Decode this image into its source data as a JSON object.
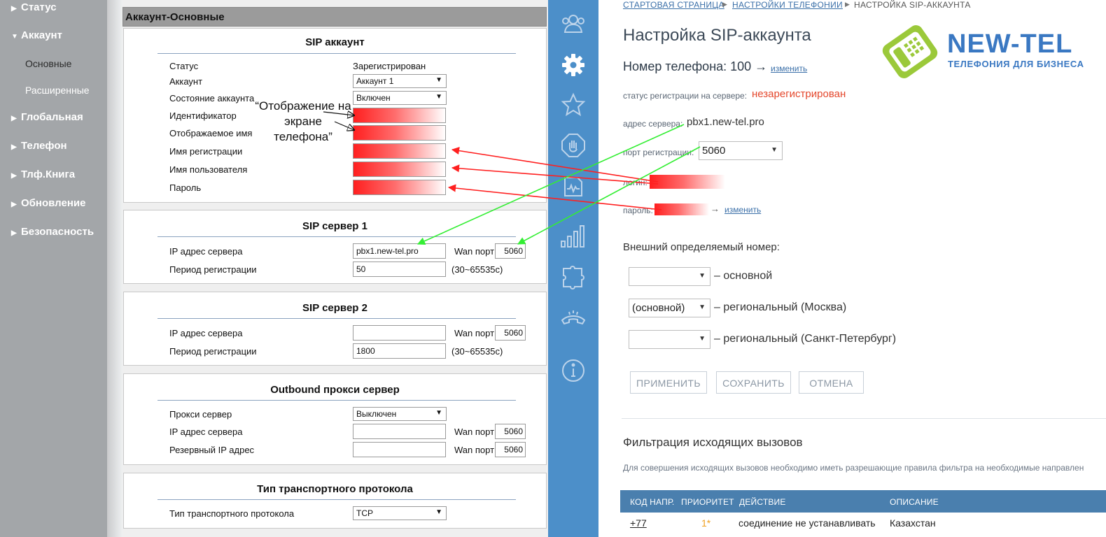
{
  "left_menu": {
    "items": [
      {
        "label": "Статус"
      },
      {
        "label": "Аккаунт"
      },
      {
        "label": "Глобальная"
      },
      {
        "label": "Телефон"
      },
      {
        "label": "Тлф.Книга"
      },
      {
        "label": "Обновление"
      },
      {
        "label": "Безопасность"
      }
    ],
    "sub_items": [
      {
        "label": "Основные"
      },
      {
        "label": "Расширенные"
      }
    ]
  },
  "phone_panel": {
    "header": "Аккаунт-Основные",
    "sip_account": {
      "title": "SIP аккаунт",
      "status_label": "Статус",
      "status_value": "Зарегистрирован",
      "account_label": "Аккаунт",
      "account_value": "Аккаунт 1",
      "account_state_label": "Состояние аккаунта",
      "account_state_value": "Включен",
      "identifier_label": "Идентификатор",
      "display_name_label": "Отображаемое имя",
      "registration_name_label": "Имя регистрации",
      "username_label": "Имя пользователя",
      "password_label": "Пароль"
    },
    "annotation": "“Отображение на экране телефона”",
    "sip_server1": {
      "title": "SIP сервер 1",
      "ip_label": "IP адрес сервера",
      "ip_value": "pbx1.new-tel.pro",
      "wan_label": "Wan порт",
      "wan_value": "5060",
      "period_label": "Период регистрации",
      "period_value": "50",
      "period_hint": "(30~65535c)"
    },
    "sip_server2": {
      "title": "SIP сервер 2",
      "ip_label": "IP адрес сервера",
      "ip_value": "",
      "wan_label": "Wan порт",
      "wan_value": "5060",
      "period_label": "Период регистрации",
      "period_value": "1800",
      "period_hint": "(30~65535c)"
    },
    "outbound_proxy": {
      "title": "Outbound прокси сервер",
      "proxy_label": "Прокси сервер",
      "proxy_value": "Выключен",
      "ip_label": "IP адрес сервера",
      "wan_label": "Wan порт",
      "wan_value": "5060",
      "backup_ip_label": "Резервный IP адрес",
      "backup_wan_label": "Wan порт",
      "backup_wan_value": "5060"
    },
    "transport": {
      "title": "Тип транспортного протокола",
      "type_label": "Тип транспортного протокола",
      "type_value": "TCP"
    }
  },
  "icon_strip": {
    "icons": [
      "users-icon",
      "gear-icon",
      "star-icon",
      "hand-stop-icon",
      "voicemail-icon",
      "bar-chart-icon",
      "puzzle-icon",
      "phone-icon",
      "info-icon"
    ]
  },
  "right_panel": {
    "breadcrumb": [
      "СТАРТОВАЯ СТРАНИЦА",
      "НАСТРОЙКИ ТЕЛЕФОНИИ",
      "НАСТРОЙКА SIP-АККАУНТА"
    ],
    "title": "Настройка SIP-аккаунта",
    "phone_number_label": "Номер телефона: 100 →",
    "change_link": "изменить",
    "reg_status_label": "статус регистрации на сервере:",
    "reg_status_value": "незарегистрирован",
    "server_address_label": "адрес сервера:",
    "server_address_value": "pbx1.new-tel.pro",
    "reg_port_label": "порт регистрации:",
    "reg_port_value": "5060",
    "login_label": "логин:",
    "password_label": "пароль:",
    "password_change_arrow": "→",
    "password_change_link": "изменить",
    "external_number_title": "Внешний определяемый номер:",
    "ext_rows": [
      {
        "select_value": "",
        "caption": "– основной"
      },
      {
        "select_value": "(основной)",
        "caption": "– региональный (Москва)"
      },
      {
        "select_value": "",
        "caption": "– региональный (Санкт-Петербург)"
      }
    ],
    "buttons": {
      "apply": "ПРИМЕНИТЬ",
      "save": "СОХРАНИТЬ",
      "cancel": "ОТМЕНА"
    },
    "filter_title": "Фильтрация исходящих вызовов",
    "filter_description": "Для совершения исходящих вызовов необходимо иметь разрешающие правила фильтра на необходимые направлен",
    "table": {
      "headers": [
        "КОД НАПР.",
        "ПРИОРИТЕТ",
        "ДЕЙСТВИЕ",
        "ОПИСАНИЕ"
      ],
      "rows": [
        {
          "code": "+77",
          "priority": "1*",
          "action": "соединение не устанавливать",
          "description": "Казахстан"
        }
      ]
    },
    "logo": {
      "brand": "NEW-TEL",
      "tagline": "ТЕЛЕФОНИЯ ДЛЯ БИЗНЕСА"
    }
  },
  "colors": {
    "menu_bg": "#a3a6a9",
    "strip_bg": "#4c8fc9",
    "status_red": "#e4472c",
    "annotation_red": "#ff2020",
    "annotation_green": "#33ee33",
    "brand_blue": "#3a78c2",
    "brand_green": "#9bc93a"
  }
}
